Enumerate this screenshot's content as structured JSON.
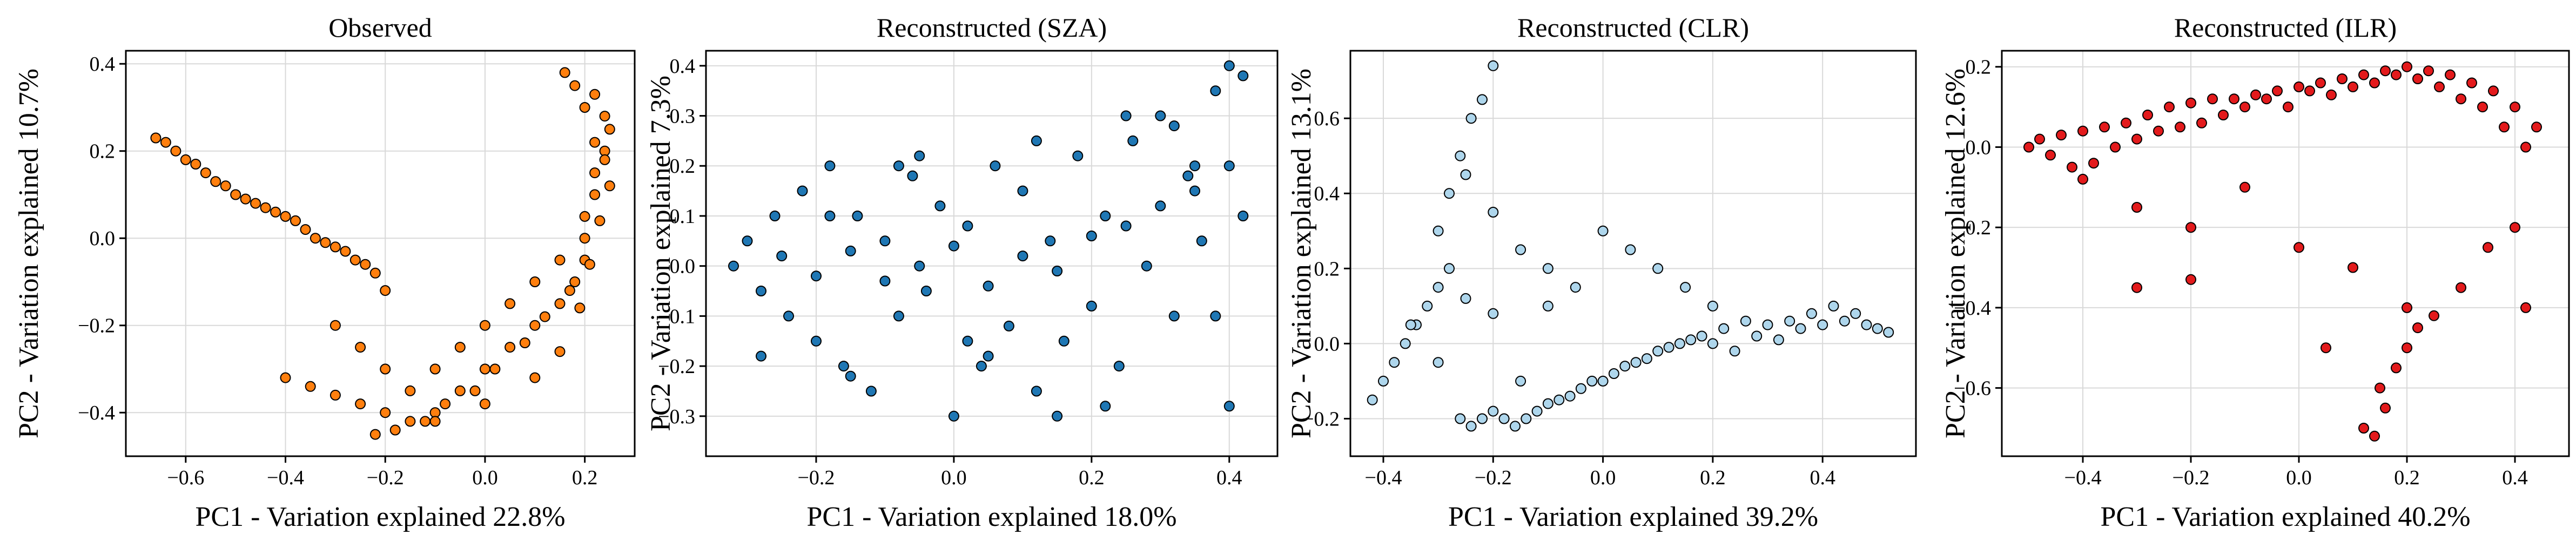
{
  "chart_data": [
    {
      "type": "scatter",
      "title": "Observed",
      "xlabel": "PC1 - Variation explained 22.8%",
      "ylabel": "PC2 - Variation explained 10.7%",
      "xlim": [
        -0.72,
        0.3
      ],
      "ylim": [
        -0.5,
        0.43
      ],
      "xticks": [
        -0.6,
        -0.4,
        -0.2,
        0.0,
        0.2
      ],
      "yticks": [
        -0.4,
        -0.2,
        0.0,
        0.2,
        0.4
      ],
      "xtick_labels": [
        "−0.6",
        "−0.4",
        "−0.2",
        "0.0",
        "0.2"
      ],
      "ytick_labels": [
        "−0.4",
        "−0.2",
        "0.0",
        "0.2",
        "0.4"
      ],
      "grid": true,
      "color": "#ff7f0e",
      "x": [
        -0.66,
        -0.64,
        -0.62,
        -0.6,
        -0.58,
        -0.56,
        -0.54,
        -0.52,
        -0.5,
        -0.48,
        -0.46,
        -0.44,
        -0.42,
        -0.4,
        -0.38,
        -0.36,
        -0.34,
        -0.32,
        -0.3,
        -0.28,
        -0.26,
        -0.24,
        -0.22,
        -0.2,
        -0.4,
        -0.35,
        -0.3,
        -0.25,
        -0.2,
        -0.15,
        -0.1,
        -0.05,
        0.0,
        0.05,
        0.1,
        0.15,
        0.18,
        0.2,
        0.22,
        0.24,
        -0.3,
        -0.25,
        -0.2,
        -0.15,
        -0.1,
        -0.05,
        0.0,
        0.05,
        0.1,
        0.15,
        0.2,
        0.22,
        0.25,
        0.2,
        0.18,
        0.16,
        0.22,
        0.24,
        0.2,
        0.17,
        0.12,
        0.08,
        0.02,
        -0.02,
        -0.08,
        -0.12,
        -0.18,
        -0.22,
        -0.1,
        0.0,
        0.1,
        0.15,
        0.19,
        0.21,
        0.23,
        0.25,
        0.24,
        0.22
      ],
      "y": [
        0.23,
        0.22,
        0.2,
        0.18,
        0.17,
        0.15,
        0.13,
        0.12,
        0.1,
        0.09,
        0.08,
        0.07,
        0.06,
        0.05,
        0.04,
        0.02,
        0.0,
        -0.01,
        -0.02,
        -0.03,
        -0.05,
        -0.06,
        -0.08,
        -0.12,
        -0.32,
        -0.34,
        -0.36,
        -0.38,
        -0.4,
        -0.42,
        -0.4,
        -0.35,
        -0.3,
        -0.25,
        -0.2,
        -0.15,
        -0.1,
        0.0,
        0.1,
        0.2,
        -0.2,
        -0.25,
        -0.3,
        -0.35,
        -0.3,
        -0.25,
        -0.2,
        -0.15,
        -0.1,
        -0.05,
        0.05,
        0.15,
        0.25,
        0.3,
        0.35,
        0.38,
        0.33,
        0.28,
        -0.05,
        -0.12,
        -0.18,
        -0.24,
        -0.3,
        -0.35,
        -0.38,
        -0.42,
        -0.44,
        -0.45,
        -0.42,
        -0.38,
        -0.32,
        -0.26,
        -0.16,
        -0.06,
        0.04,
        0.12,
        0.18,
        0.22
      ]
    },
    {
      "type": "scatter",
      "title": "Reconstructed (SZA)",
      "xlabel": "PC1 - Variation explained 18.0%",
      "ylabel": "PC2 - Variation explained 7.3%",
      "xlim": [
        -0.36,
        0.47
      ],
      "ylim": [
        -0.38,
        0.43
      ],
      "xticks": [
        -0.2,
        0.0,
        0.2,
        0.4
      ],
      "yticks": [
        -0.3,
        -0.2,
        -0.1,
        0.0,
        0.1,
        0.2,
        0.3,
        0.4
      ],
      "xtick_labels": [
        "−0.2",
        "0.0",
        "0.2",
        "0.4"
      ],
      "ytick_labels": [
        "−0.3",
        "−0.2",
        "−0.1",
        "0.0",
        "0.1",
        "0.2",
        "0.3",
        "0.4"
      ],
      "grid": true,
      "color": "#1f77b4",
      "x": [
        -0.32,
        -0.3,
        -0.28,
        -0.26,
        -0.24,
        -0.22,
        -0.2,
        -0.18,
        -0.16,
        -0.14,
        -0.12,
        -0.1,
        -0.08,
        -0.06,
        -0.04,
        -0.02,
        0.0,
        0.02,
        0.04,
        0.06,
        0.08,
        0.1,
        0.12,
        0.14,
        0.16,
        0.18,
        0.2,
        0.22,
        0.24,
        0.26,
        0.28,
        0.3,
        0.32,
        0.34,
        0.36,
        0.38,
        0.4,
        0.42,
        -0.25,
        -0.2,
        -0.15,
        -0.1,
        -0.05,
        0.0,
        0.05,
        0.1,
        0.15,
        0.2,
        0.25,
        0.3,
        0.35,
        0.4,
        -0.28,
        -0.18,
        -0.08,
        0.02,
        0.12,
        0.22,
        0.32,
        0.42,
        -0.15,
        -0.05,
        0.05,
        0.15,
        0.25,
        0.35,
        0.38,
        0.4
      ],
      "y": [
        0.0,
        0.05,
        -0.05,
        0.1,
        -0.1,
        0.15,
        -0.15,
        0.2,
        -0.2,
        0.1,
        -0.25,
        0.05,
        -0.1,
        0.18,
        -0.05,
        0.12,
        -0.3,
        0.08,
        -0.2,
        0.2,
        -0.12,
        0.15,
        -0.25,
        0.05,
        -0.15,
        0.22,
        -0.08,
        0.1,
        -0.2,
        0.25,
        0.0,
        0.3,
        -0.1,
        0.18,
        0.05,
        0.35,
        0.2,
        0.1,
        0.02,
        -0.02,
        0.03,
        -0.03,
        0.0,
        0.04,
        -0.04,
        0.02,
        -0.01,
        0.06,
        0.08,
        0.12,
        0.15,
        0.4,
        -0.18,
        0.1,
        0.2,
        -0.15,
        0.25,
        -0.28,
        0.28,
        0.38,
        -0.22,
        0.22,
        -0.18,
        -0.3,
        0.3,
        0.2,
        -0.1,
        -0.28
      ]
    },
    {
      "type": "scatter",
      "title": "Reconstructed (CLR)",
      "xlabel": "PC1 - Variation explained 39.2%",
      "ylabel": "PC2 - Variation explained 13.1%",
      "xlim": [
        -0.46,
        0.57
      ],
      "ylim": [
        -0.3,
        0.78
      ],
      "xticks": [
        -0.4,
        -0.2,
        0.0,
        0.2,
        0.4
      ],
      "yticks": [
        -0.2,
        0.0,
        0.2,
        0.4,
        0.6
      ],
      "xtick_labels": [
        "−0.4",
        "−0.2",
        "0.0",
        "0.2",
        "0.4"
      ],
      "ytick_labels": [
        "−0.2",
        "0.0",
        "0.2",
        "0.4",
        "0.6"
      ],
      "grid": true,
      "color": "#aed6ec",
      "x": [
        -0.42,
        -0.4,
        -0.38,
        -0.36,
        -0.34,
        -0.32,
        -0.3,
        -0.28,
        -0.26,
        -0.24,
        -0.22,
        -0.2,
        -0.18,
        -0.16,
        -0.14,
        -0.12,
        -0.1,
        -0.08,
        -0.06,
        -0.04,
        -0.02,
        0.0,
        0.02,
        0.04,
        0.06,
        0.08,
        0.1,
        0.12,
        0.14,
        0.16,
        0.18,
        0.2,
        0.22,
        0.24,
        0.26,
        0.28,
        0.3,
        0.32,
        0.34,
        0.36,
        0.38,
        0.4,
        0.42,
        0.44,
        0.46,
        0.48,
        0.5,
        0.52,
        -0.3,
        -0.28,
        -0.26,
        -0.24,
        -0.22,
        -0.2,
        -0.25,
        -0.2,
        -0.15,
        -0.1,
        -0.05,
        0.0,
        0.05,
        0.1,
        0.15,
        0.2,
        -0.35,
        -0.3,
        -0.25,
        -0.2,
        -0.15,
        -0.1
      ],
      "y": [
        -0.15,
        -0.1,
        -0.05,
        0.0,
        0.05,
        0.1,
        0.15,
        0.2,
        -0.2,
        -0.22,
        -0.2,
        -0.18,
        -0.2,
        -0.22,
        -0.2,
        -0.18,
        -0.16,
        -0.15,
        -0.14,
        -0.12,
        -0.1,
        -0.1,
        -0.08,
        -0.06,
        -0.05,
        -0.04,
        -0.02,
        -0.01,
        0.0,
        0.01,
        0.02,
        0.0,
        0.04,
        -0.02,
        0.06,
        0.02,
        0.05,
        0.01,
        0.06,
        0.04,
        0.08,
        0.05,
        0.1,
        0.06,
        0.08,
        0.05,
        0.04,
        0.03,
        0.3,
        0.4,
        0.5,
        0.6,
        0.65,
        0.74,
        0.45,
        0.35,
        0.25,
        0.2,
        0.15,
        0.3,
        0.25,
        0.2,
        0.15,
        0.1,
        0.05,
        -0.05,
        0.12,
        0.08,
        -0.1,
        0.1
      ]
    },
    {
      "type": "scatter",
      "title": "Reconstructed (ILR)",
      "xlabel": "PC1 - Variation explained 40.2%",
      "ylabel": "PC2 - Variation explained 12.6%",
      "xlim": [
        -0.55,
        0.5
      ],
      "ylim": [
        -0.77,
        0.24
      ],
      "xticks": [
        -0.4,
        -0.2,
        0.0,
        0.2,
        0.4
      ],
      "yticks": [
        -0.6,
        -0.4,
        -0.2,
        0.0,
        0.2
      ],
      "xtick_labels": [
        "−0.4",
        "−0.2",
        "0.0",
        "0.2",
        "0.4"
      ],
      "ytick_labels": [
        "−0.6",
        "−0.4",
        "−0.2",
        "0.0",
        "0.2"
      ],
      "grid": true,
      "color": "#e31a1c",
      "x": [
        -0.5,
        -0.48,
        -0.46,
        -0.44,
        -0.42,
        -0.4,
        -0.38,
        -0.36,
        -0.34,
        -0.32,
        -0.3,
        -0.28,
        -0.26,
        -0.24,
        -0.22,
        -0.2,
        -0.18,
        -0.16,
        -0.14,
        -0.12,
        -0.1,
        -0.08,
        -0.06,
        -0.04,
        -0.02,
        0.0,
        0.02,
        0.04,
        0.06,
        0.08,
        0.1,
        0.12,
        0.14,
        0.16,
        0.18,
        0.2,
        0.22,
        0.24,
        0.26,
        0.28,
        0.3,
        0.32,
        0.34,
        0.36,
        0.38,
        0.4,
        0.42,
        0.44,
        -0.4,
        -0.3,
        -0.2,
        -0.1,
        0.0,
        0.1,
        0.2,
        0.3,
        0.4,
        0.15,
        0.18,
        0.2,
        0.22,
        0.25,
        0.12,
        0.16,
        0.14,
        -0.3,
        -0.2,
        0.05,
        0.35,
        0.42
      ],
      "y": [
        0.0,
        0.02,
        -0.02,
        0.03,
        -0.05,
        0.04,
        -0.04,
        0.05,
        0.0,
        0.06,
        0.02,
        0.08,
        0.04,
        0.1,
        0.05,
        0.11,
        0.06,
        0.12,
        0.08,
        0.12,
        0.1,
        0.13,
        0.12,
        0.14,
        0.1,
        0.15,
        0.14,
        0.16,
        0.13,
        0.17,
        0.15,
        0.18,
        0.16,
        0.19,
        0.18,
        0.2,
        0.17,
        0.19,
        0.15,
        0.18,
        0.12,
        0.16,
        0.1,
        0.14,
        0.05,
        0.1,
        0.0,
        0.05,
        -0.08,
        -0.15,
        -0.2,
        -0.1,
        -0.25,
        -0.3,
        -0.4,
        -0.35,
        -0.2,
        -0.6,
        -0.55,
        -0.5,
        -0.45,
        -0.42,
        -0.7,
        -0.65,
        -0.72,
        -0.35,
        -0.33,
        -0.5,
        -0.25,
        -0.4
      ]
    }
  ]
}
